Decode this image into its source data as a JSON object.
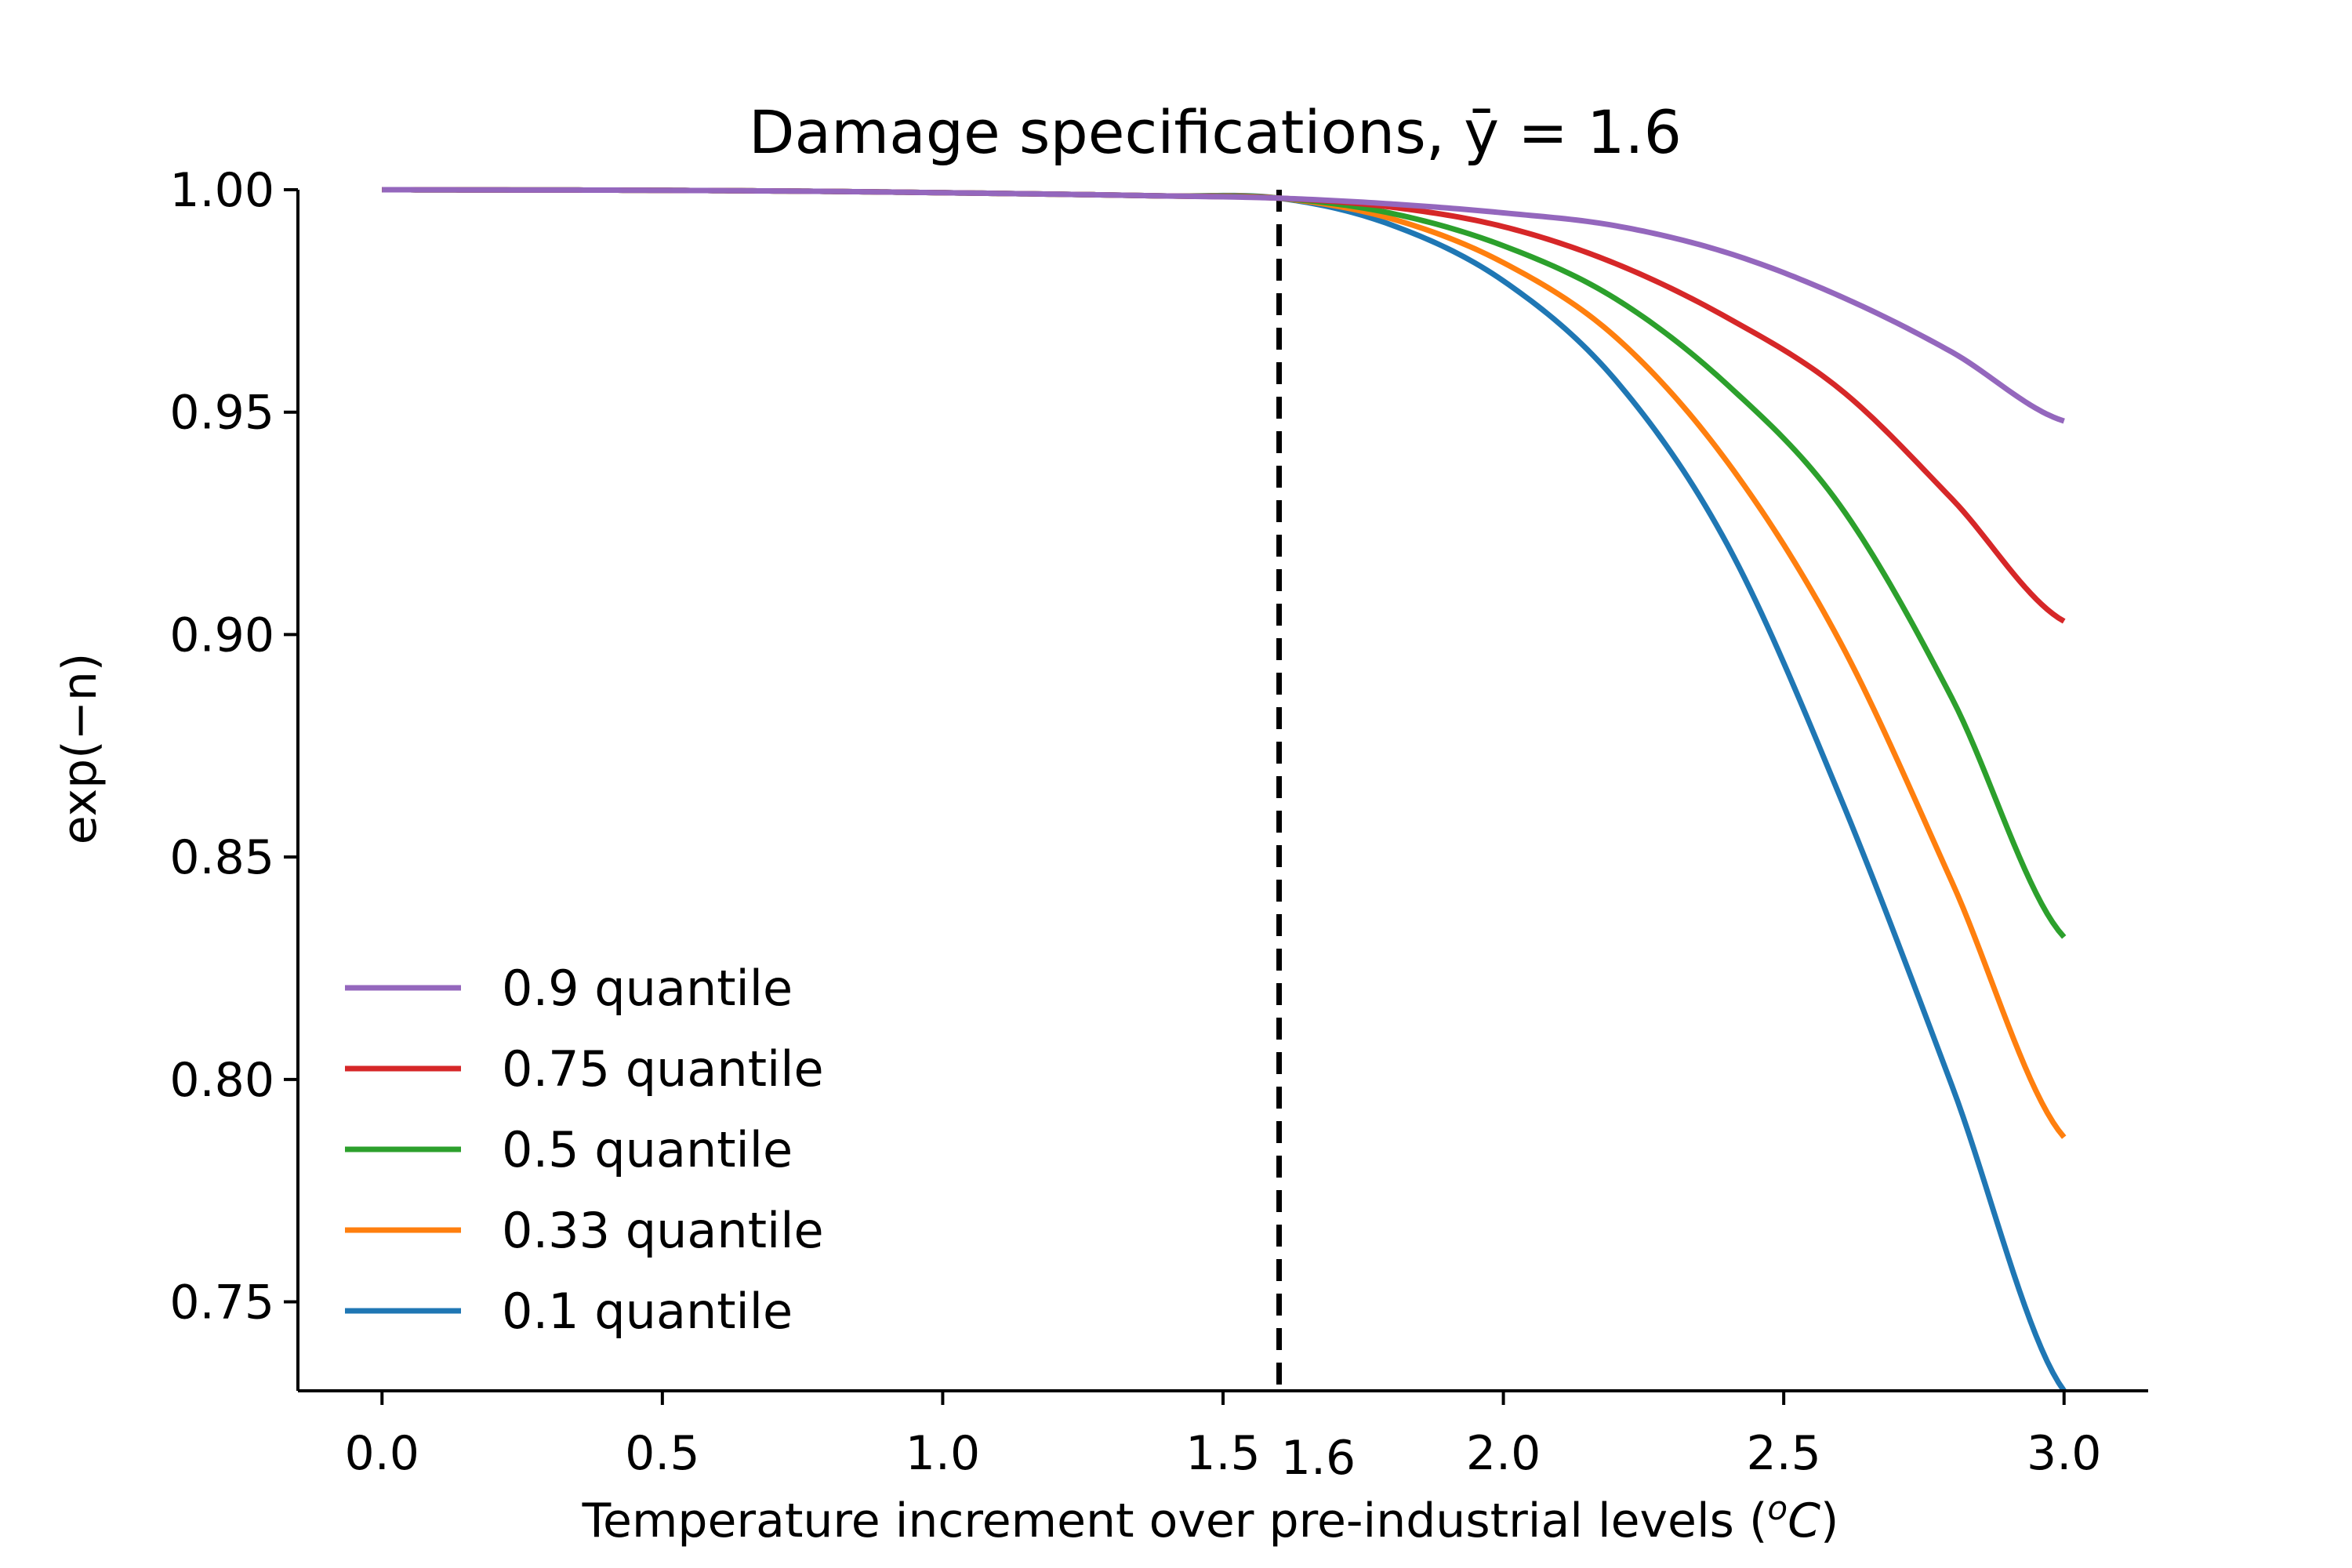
{
  "chart_data": {
    "type": "line",
    "title": "Damage specifications, ȳ = 1.6",
    "xlabel": "Temperature increment over pre-industrial levels",
    "xlabel_unit_prefix": "o",
    "xlabel_unit": "C",
    "ylabel": "exp(−n)",
    "xlim": [
      -0.15,
      3.15
    ],
    "ylim": [
      0.73,
      1.0
    ],
    "xticks": [
      0.0,
      0.5,
      1.0,
      1.5,
      2.0,
      2.5,
      3.0
    ],
    "xtick_labels": [
      "0.0",
      "0.5",
      "1.0",
      "1.5",
      "2.0",
      "2.5",
      "3.0"
    ],
    "yticks": [
      0.75,
      0.8,
      0.85,
      0.9,
      0.95,
      1.0
    ],
    "ytick_labels": [
      "0.75",
      "0.80",
      "0.85",
      "0.90",
      "0.95",
      "1.00"
    ],
    "vline": {
      "x": 1.6,
      "label": "1.6",
      "color": "#000000",
      "style": "dashed"
    },
    "threshold": 1.6,
    "x": [
      0.0,
      0.2,
      0.4,
      0.6,
      0.8,
      1.0,
      1.2,
      1.4,
      1.6,
      1.8,
      2.0,
      2.2,
      2.4,
      2.6,
      2.8,
      3.0
    ],
    "series": [
      {
        "name": "0.9 quantile",
        "color": "#9467bd",
        "values": [
          1.0,
          0.99995,
          0.99991,
          0.9998,
          0.99962,
          0.99933,
          0.999,
          0.9986,
          0.9981,
          0.9968,
          0.9948,
          0.9919,
          0.9858,
          0.9761,
          0.9635,
          0.948
        ]
      },
      {
        "name": "0.75 quantile",
        "color": "#d62728",
        "values": [
          1.0,
          0.99995,
          0.99991,
          0.9998,
          0.99962,
          0.99933,
          0.999,
          0.9986,
          0.9981,
          0.9961,
          0.9917,
          0.9834,
          0.9712,
          0.9552,
          0.9305,
          0.903
        ]
      },
      {
        "name": "0.5 quantile",
        "color": "#2ca02c",
        "values": [
          1.0,
          0.99995,
          0.99991,
          0.9998,
          0.99962,
          0.99933,
          0.999,
          0.9986,
          0.9981,
          0.9947,
          0.9874,
          0.9755,
          0.9561,
          0.9291,
          0.8857,
          0.832
        ]
      },
      {
        "name": "0.33 quantile",
        "color": "#ff7f0e",
        "values": [
          1.0,
          0.99995,
          0.99991,
          0.9998,
          0.99962,
          0.99933,
          0.999,
          0.9986,
          0.9981,
          0.9935,
          0.9836,
          0.9669,
          0.9387,
          0.8985,
          0.8444,
          0.787
        ]
      },
      {
        "name": "0.1 quantile",
        "color": "#1f77b4",
        "values": [
          1.0,
          0.99995,
          0.99991,
          0.9998,
          0.99962,
          0.99933,
          0.999,
          0.9986,
          0.9981,
          0.9921,
          0.9795,
          0.9572,
          0.9201,
          0.8637,
          0.7986,
          0.73
        ]
      }
    ],
    "legend": {
      "loc": "lower-left"
    },
    "grid": false
  }
}
